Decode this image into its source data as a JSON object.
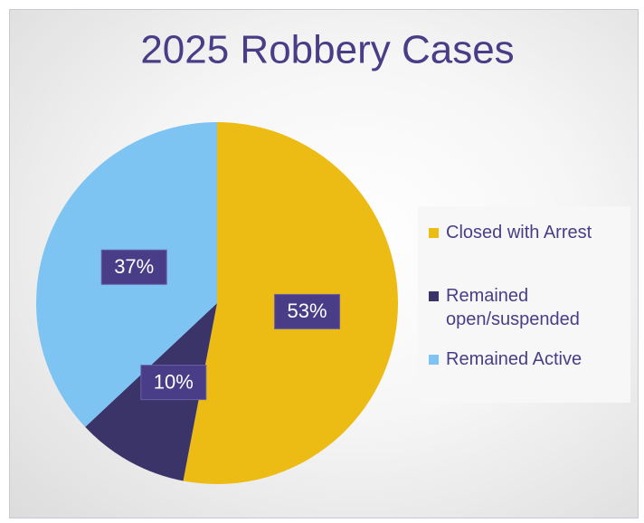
{
  "chart_data": {
    "type": "pie",
    "title": "2025 Robbery Cases",
    "categories": [
      "Closed with Arrest",
      "Remained open/suspended",
      "Remained Active"
    ],
    "values": [
      53,
      10,
      37
    ],
    "value_labels": [
      "53%",
      "10%",
      "37%"
    ],
    "colors": [
      "#ecbc14",
      "#3b3468",
      "#7ec4f2"
    ],
    "legend": "right"
  }
}
